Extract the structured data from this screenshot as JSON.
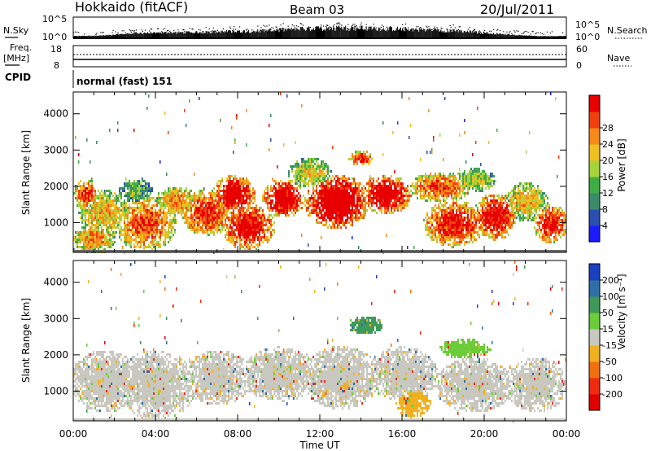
{
  "header": {
    "station": "Hokkaido (fitACF)",
    "beam": "Beam 03",
    "date": "20/Jul/2011"
  },
  "chart_data": [
    {
      "type": "line",
      "name": "noise-search-panel",
      "ylabel_left": "N.Sky",
      "ylabel_right": "N.Search",
      "left_ticks": [
        "10^5",
        "10^0"
      ],
      "right_ticks": [
        "10^5",
        "10^0"
      ],
      "sky_profile_hours": [
        0,
        1.5,
        3,
        5,
        7,
        9,
        11,
        13,
        15,
        17,
        19,
        21,
        22.5,
        24
      ],
      "sky_profile_level": [
        0.05,
        0.1,
        0.3,
        0.35,
        0.4,
        0.5,
        0.65,
        0.75,
        0.7,
        0.6,
        0.45,
        0.2,
        0.05,
        0.05
      ]
    },
    {
      "type": "line",
      "name": "frequency-nave-panel",
      "ylabel_left_lines": [
        "Freq.",
        "[MHz]"
      ],
      "ylabel_right": "Nave",
      "left_ticks": [
        "18",
        "8"
      ],
      "right_ticks": [
        "60",
        "0"
      ],
      "frequency_mhz": 10.4,
      "nave": 33
    },
    {
      "type": "table",
      "name": "cpid",
      "label": "CPID",
      "text": "normal (fast) 151"
    },
    {
      "type": "heatmap",
      "name": "power",
      "ylabel": "Slant Range [km]",
      "yticks": [
        "1000",
        "2000",
        "3000",
        "4000"
      ],
      "ylim_km": [
        180,
        4600
      ],
      "colorbar": {
        "label": "Power [dB]",
        "ticks": [
          "4",
          "8",
          "12",
          "16",
          "20",
          "24",
          "28"
        ],
        "colors": [
          "#1a1aff",
          "#2a4fb0",
          "#3c8a6a",
          "#3fae45",
          "#a6d23a",
          "#f0c020",
          "#f58a1a",
          "#f04010",
          "#e80000"
        ]
      },
      "blobs": [
        {
          "t": 0.6,
          "r": 1800,
          "dt": 0.6,
          "dr": 400,
          "v": 0.7
        },
        {
          "t": 1.5,
          "r": 1300,
          "dt": 1.2,
          "dr": 600,
          "v": 0.55
        },
        {
          "t": 1.0,
          "r": 600,
          "dt": 1.0,
          "dr": 400,
          "v": 0.6
        },
        {
          "t": 3.0,
          "r": 1900,
          "dt": 0.8,
          "dr": 300,
          "v": 0.35
        },
        {
          "t": 3.5,
          "r": 1000,
          "dt": 1.4,
          "dr": 700,
          "v": 0.7
        },
        {
          "t": 5.0,
          "r": 1600,
          "dt": 1.0,
          "dr": 400,
          "v": 0.6
        },
        {
          "t": 6.5,
          "r": 1300,
          "dt": 1.2,
          "dr": 600,
          "v": 0.75
        },
        {
          "t": 7.8,
          "r": 1800,
          "dt": 1.0,
          "dr": 500,
          "v": 0.9
        },
        {
          "t": 8.5,
          "r": 900,
          "dt": 1.2,
          "dr": 600,
          "v": 0.85
        },
        {
          "t": 10.2,
          "r": 1700,
          "dt": 1.0,
          "dr": 500,
          "v": 0.9
        },
        {
          "t": 11.5,
          "r": 2400,
          "dt": 1.0,
          "dr": 400,
          "v": 0.5
        },
        {
          "t": 12.8,
          "r": 1600,
          "dt": 1.5,
          "dr": 700,
          "v": 0.95
        },
        {
          "t": 14.0,
          "r": 2800,
          "dt": 0.6,
          "dr": 200,
          "v": 0.75
        },
        {
          "t": 15.2,
          "r": 1800,
          "dt": 1.2,
          "dr": 500,
          "v": 0.9
        },
        {
          "t": 17.8,
          "r": 2000,
          "dt": 1.4,
          "dr": 400,
          "v": 0.7
        },
        {
          "t": 18.5,
          "r": 1000,
          "dt": 1.4,
          "dr": 600,
          "v": 0.8
        },
        {
          "t": 20.5,
          "r": 1200,
          "dt": 1.0,
          "dr": 600,
          "v": 0.85
        },
        {
          "t": 22.0,
          "r": 1600,
          "dt": 1.0,
          "dr": 500,
          "v": 0.55
        },
        {
          "t": 23.2,
          "r": 1000,
          "dt": 0.8,
          "dr": 500,
          "v": 0.8
        },
        {
          "t": 19.5,
          "r": 2200,
          "dt": 1.0,
          "dr": 300,
          "v": 0.45
        }
      ]
    },
    {
      "type": "heatmap",
      "name": "velocity",
      "ylabel": "Slant Range [km]",
      "yticks": [
        "1000",
        "2000",
        "3000",
        "4000"
      ],
      "ylim_km": [
        180,
        4600
      ],
      "xlabel": "Time UT",
      "xticks": [
        "00:00",
        "04:00",
        "08:00",
        "12:00",
        "16:00",
        "20:00",
        "00:00"
      ],
      "xlim_hours": [
        0,
        24
      ],
      "colorbar": {
        "label": "Velocity [m s⁻¹]",
        "ticks": [
          "200",
          "100",
          "50",
          "15",
          "-15",
          "-50",
          "-100",
          "-200"
        ],
        "colors": [
          "#1a3fbf",
          "#2f6fa8",
          "#3f9a5a",
          "#6ccc3a",
          "#c8c8c0",
          "#f0b020",
          "#f07010",
          "#ee2a10",
          "#e00000"
        ]
      },
      "blobs": [
        {
          "t": 1.5,
          "r": 1300,
          "dt": 1.6,
          "dr": 800,
          "v": 4
        },
        {
          "t": 4.0,
          "r": 1200,
          "dt": 1.8,
          "dr": 900,
          "v": 4
        },
        {
          "t": 7.0,
          "r": 1400,
          "dt": 1.6,
          "dr": 700,
          "v": 4
        },
        {
          "t": 10.0,
          "r": 1500,
          "dt": 1.8,
          "dr": 700,
          "v": 4
        },
        {
          "t": 13.0,
          "r": 1400,
          "dt": 1.8,
          "dr": 800,
          "v": 4
        },
        {
          "t": 16.0,
          "r": 1500,
          "dt": 1.6,
          "dr": 700,
          "v": 4
        },
        {
          "t": 19.5,
          "r": 1200,
          "dt": 1.8,
          "dr": 700,
          "v": 4
        },
        {
          "t": 22.5,
          "r": 1200,
          "dt": 1.4,
          "dr": 700,
          "v": 4
        },
        {
          "t": 14.2,
          "r": 2850,
          "dt": 0.8,
          "dr": 250,
          "v": 2
        },
        {
          "t": 19.0,
          "r": 2200,
          "dt": 1.2,
          "dr": 250,
          "v": 3
        },
        {
          "t": 13.2,
          "r": 1200,
          "dt": 0.6,
          "dr": 300,
          "v": 5
        },
        {
          "t": 16.5,
          "r": 700,
          "dt": 0.8,
          "dr": 400,
          "v": 5
        }
      ]
    }
  ]
}
